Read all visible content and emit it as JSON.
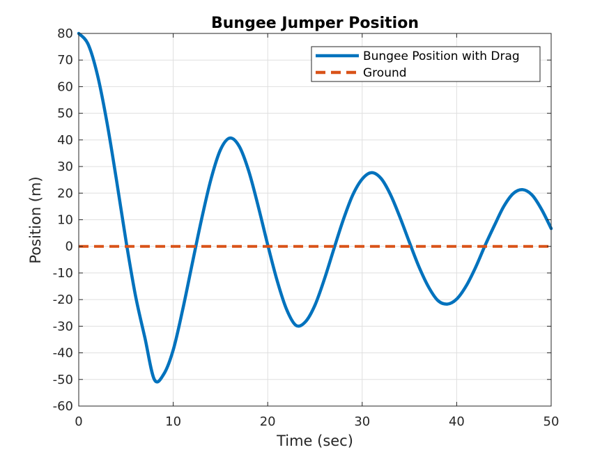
{
  "chart_data": {
    "type": "line",
    "title": "Bungee Jumper Position",
    "xlabel": "Time (sec)",
    "ylabel": "Position (m)",
    "xlim": [
      0,
      50
    ],
    "ylim": [
      -60,
      80
    ],
    "xticks": [
      0,
      10,
      20,
      30,
      40,
      50
    ],
    "yticks": [
      80,
      70,
      60,
      50,
      40,
      30,
      20,
      10,
      0,
      -10,
      -20,
      -30,
      -40,
      -50,
      -60
    ],
    "grid": true,
    "legend_position": "top-right",
    "series": [
      {
        "name": "Bungee Position with Drag",
        "color": "#0072BD",
        "style": "solid",
        "x": [
          0,
          1,
          2,
          3,
          4,
          5,
          6,
          7,
          8,
          9,
          10,
          11,
          12,
          13,
          14,
          15,
          16,
          17,
          18,
          19,
          20,
          21,
          22,
          23,
          24,
          25,
          26,
          27,
          28,
          29,
          30,
          31,
          32,
          33,
          34,
          35,
          36,
          37,
          38,
          39,
          40,
          41,
          42,
          43,
          44,
          45,
          46,
          47,
          48,
          49,
          50
        ],
        "y": [
          80,
          75.9,
          64.1,
          46.3,
          24.8,
          2.1,
          -18.4,
          -34.3,
          -50.0,
          -48.0,
          -38.9,
          -23.8,
          -6.7,
          10.2,
          25.3,
          36.3,
          40.7,
          37.5,
          28.2,
          15.0,
          0.6,
          -12.9,
          -23.7,
          -29.7,
          -28.3,
          -22.1,
          -12.3,
          -1.0,
          10.0,
          19.3,
          25.3,
          27.7,
          25.5,
          19.4,
          10.9,
          1.5,
          -7.6,
          -15.1,
          -20.3,
          -21.7,
          -19.8,
          -14.9,
          -7.9,
          0.3,
          7.9,
          15.1,
          19.9,
          21.3,
          19.2,
          13.8,
          6.7
        ]
      },
      {
        "name": "Ground",
        "color": "#D95319",
        "style": "dashed",
        "x": [
          0,
          50
        ],
        "y": [
          0,
          0
        ]
      }
    ]
  }
}
